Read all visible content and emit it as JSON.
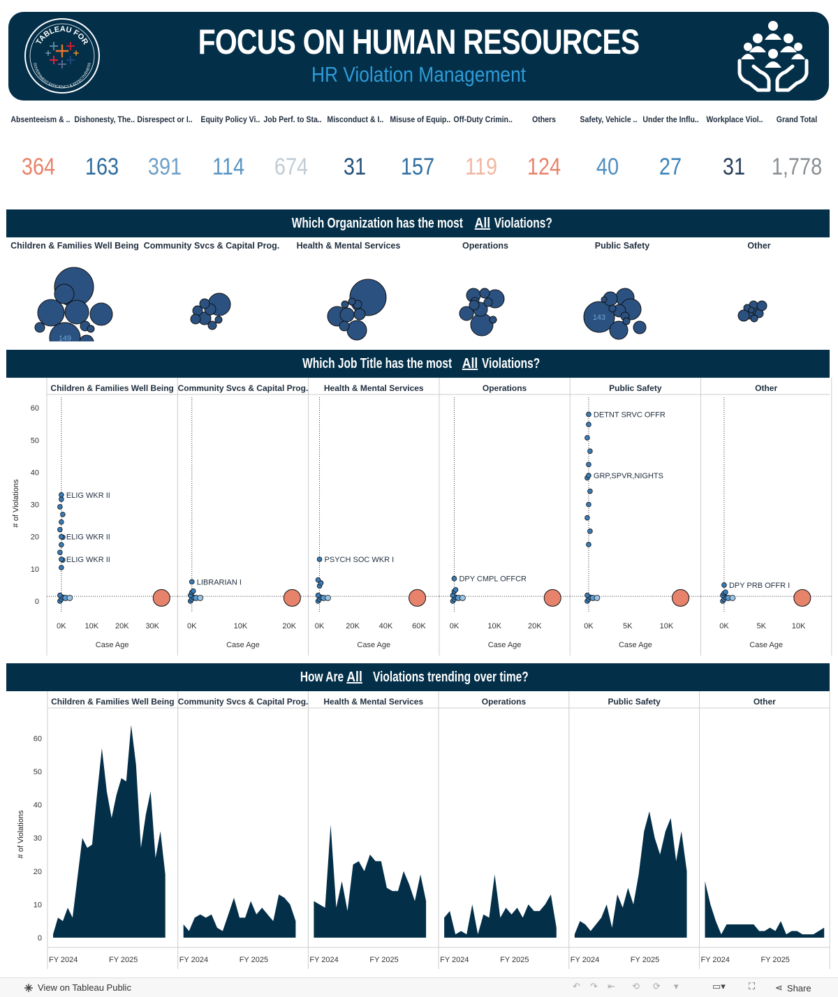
{
  "header": {
    "logo_line1": "TABLEAU FOR",
    "logo_line2": "GOVERNMENT EFFICIENCY & EFFECTIVENESS",
    "title": "FOCUS ON HUMAN RESOURCES",
    "subtitle": "HR Violation Management",
    "logo_icon": "tableau-plus-icon",
    "hr_icon": "people-in-hands-icon"
  },
  "kpis": [
    {
      "label": "Absenteeism & ..",
      "value": "364",
      "color": "#e8836b"
    },
    {
      "label": "Dishonesty, The..",
      "value": "163",
      "color": "#2e6c9e"
    },
    {
      "label": "Disrespect or I..",
      "value": "391",
      "color": "#6f9fc6"
    },
    {
      "label": "Equity Policy Vi..",
      "value": "114",
      "color": "#5a95c3"
    },
    {
      "label": "Job Perf. to Sta..",
      "value": "674",
      "color": "#c1ccd4"
    },
    {
      "label": "Misconduct & I..",
      "value": "31",
      "color": "#23507a"
    },
    {
      "label": "Misuse of Equip..",
      "value": "157",
      "color": "#2f6fa3"
    },
    {
      "label": "Off-Duty Crimin..",
      "value": "119",
      "color": "#f0b7a3"
    },
    {
      "label": "Others",
      "value": "124",
      "color": "#e8836b"
    },
    {
      "label": "Safety, Vehicle ..",
      "value": "40",
      "color": "#4f8ec0"
    },
    {
      "label": "Under the Influ..",
      "value": "27",
      "color": "#3b82b8"
    },
    {
      "label": "Workplace Viol..",
      "value": "31",
      "color": "#283e5c"
    },
    {
      "label": "Grand Total",
      "value": "1,778",
      "color": "#8a8f94"
    }
  ],
  "sections": {
    "org_title_pre": "Which Organization has the most ",
    "org_title_u": "All",
    "org_title_post": " Violations?",
    "job_title_pre": "Which Job Title has the most ",
    "job_title_u": "All",
    "job_title_post": " Violations?",
    "trend_title_pre": "How Are ",
    "trend_title_u": "All",
    "trend_title_post": " Violations trending over time?"
  },
  "organizations": [
    "Children & Families Well Being",
    "Community Svcs & Capital Prog.",
    "Health & Mental Services",
    "Operations",
    "Public Safety",
    "Other"
  ],
  "bubble_labels": [
    {
      "org": 0,
      "text": "149"
    },
    {
      "org": 4,
      "text": "143"
    }
  ],
  "colors": {
    "navy": "#032f48",
    "bubble": "#2a5180",
    "dot": "#3a7bb5",
    "salmon": "#e8836b"
  },
  "chart_data": [
    {
      "type": "scatter",
      "title": "Which Job Title has the most All Violations?",
      "xlabel": "Case Age",
      "ylabel": "# of Violations",
      "ylim": [
        0,
        62
      ],
      "y_ticks": [
        "0",
        "10",
        "20",
        "30",
        "40",
        "50",
        "60"
      ],
      "panels": [
        {
          "name": "Children & Families Well Being",
          "x_ticks": [
            "0K",
            "10K",
            "20K",
            "30K"
          ],
          "xlim": [
            -2500,
            36000
          ],
          "labels": [
            {
              "text": "ELIG WKR II",
              "x": 0,
              "y": 33
            },
            {
              "text": "ELIG WKR II",
              "x": 0,
              "y": 20
            },
            {
              "text": "ELIG WKR II",
              "x": 0,
              "y": 13
            }
          ],
          "big_point": {
            "x": 33000,
            "y": 1
          }
        },
        {
          "name": "Community Svcs & Capital Prog.",
          "x_ticks": [
            "0K",
            "10K",
            "20K"
          ],
          "xlim": [
            -1500,
            22500
          ],
          "labels": [
            {
              "text": "LIBRARIAN I",
              "x": 0,
              "y": 6
            }
          ],
          "big_point": {
            "x": 20600,
            "y": 1
          }
        },
        {
          "name": "Health & Mental Services",
          "x_ticks": [
            "0K",
            "20K",
            "40K",
            "60K"
          ],
          "xlim": [
            -2500,
            68000
          ],
          "labels": [
            {
              "text": "PSYCH SOC WKR I",
              "x": 0,
              "y": 13
            }
          ],
          "big_point": {
            "x": 59000,
            "y": 1
          }
        },
        {
          "name": "Operations",
          "x_ticks": [
            "0K",
            "10K",
            "20K"
          ],
          "xlim": [
            -2000,
            27000
          ],
          "labels": [
            {
              "text": "DPY CMPL OFFCR",
              "x": 0,
              "y": 7
            }
          ],
          "big_point": {
            "x": 24400,
            "y": 1
          }
        },
        {
          "name": "Public Safety",
          "x_ticks": [
            "0K",
            "5K",
            "10K"
          ],
          "xlim": [
            -1500,
            13500
          ],
          "labels": [
            {
              "text": "DETNT SRVC OFFR",
              "x": 0,
              "y": 58
            },
            {
              "text": "GRP,SPVR,NIGHTS",
              "x": 0,
              "y": 39
            }
          ],
          "big_point": {
            "x": 11800,
            "y": 1
          }
        },
        {
          "name": "Other",
          "x_ticks": [
            "0K",
            "5K",
            "10K"
          ],
          "xlim": [
            -2200,
            13500
          ],
          "labels": [
            {
              "text": "DPY PRB OFFR I",
              "x": 0,
              "y": 5
            }
          ],
          "big_point": {
            "x": 10500,
            "y": 1
          }
        }
      ]
    },
    {
      "type": "area",
      "title": "How Are All Violations trending over time?",
      "ylabel": "# of Violations",
      "ylim": [
        0,
        67
      ],
      "y_ticks": [
        "0",
        "10",
        "20",
        "30",
        "40",
        "50",
        "60"
      ],
      "x_ticks": [
        "FY 2024",
        "FY 2025"
      ],
      "series": [
        {
          "name": "Children & Families Well Being",
          "values": [
            1,
            6,
            5,
            9,
            6,
            18,
            30,
            27,
            28,
            43,
            57,
            44,
            36,
            43,
            48,
            47,
            64,
            52,
            27,
            37,
            44,
            24,
            32,
            19
          ]
        },
        {
          "name": "Community Svcs & Capital Prog.",
          "values": [
            4,
            2,
            6,
            7,
            6,
            7,
            3,
            2,
            7,
            12,
            6,
            6,
            11,
            7,
            9,
            7,
            5,
            13,
            12,
            10,
            5
          ]
        },
        {
          "name": "Health & Mental Services",
          "values": [
            11,
            10,
            9,
            34,
            9,
            17,
            8,
            22,
            23,
            20,
            25,
            23,
            23,
            15,
            14,
            14,
            20,
            16,
            11,
            19,
            11
          ]
        },
        {
          "name": "Operations",
          "values": [
            6,
            8,
            1,
            2,
            1,
            10,
            1,
            7,
            6,
            19,
            6,
            9,
            7,
            9,
            6,
            10,
            8,
            8,
            10,
            13,
            3
          ]
        },
        {
          "name": "Public Safety",
          "values": [
            1,
            5,
            4,
            2,
            4,
            6,
            10,
            3,
            13,
            9,
            15,
            10,
            19,
            32,
            38,
            30,
            25,
            32,
            36,
            23,
            32,
            20
          ]
        },
        {
          "name": "Other",
          "values": [
            17,
            10,
            5,
            1,
            4,
            4,
            4,
            4,
            4,
            4,
            2,
            2,
            3,
            2,
            5,
            1,
            2,
            2,
            1,
            1,
            1,
            2,
            3
          ]
        }
      ]
    }
  ],
  "footer": {
    "view_label": "View on Tableau Public",
    "share_label": "Share"
  }
}
